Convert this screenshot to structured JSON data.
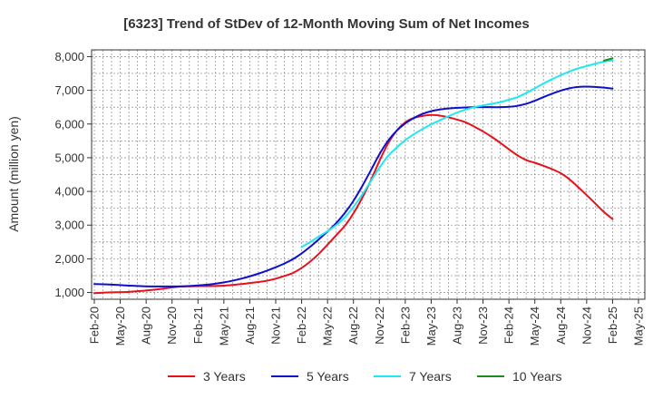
{
  "chart_data": {
    "type": "line",
    "title": "[6323]  Trend of StDev of 12-Month Moving Sum of Net Incomes",
    "xlabel": "",
    "ylabel": "Amount (million yen)",
    "x_tick_labels": [
      "Feb-20",
      "May-20",
      "Aug-20",
      "Nov-20",
      "Feb-21",
      "May-21",
      "Aug-21",
      "Nov-21",
      "Feb-22",
      "May-22",
      "Aug-22",
      "Nov-22",
      "Feb-23",
      "May-23",
      "Aug-23",
      "Nov-23",
      "Feb-24",
      "May-24",
      "Aug-24",
      "Nov-24",
      "Feb-25",
      "May-25"
    ],
    "y_ticks": [
      1000,
      2000,
      3000,
      4000,
      5000,
      6000,
      7000,
      8000
    ],
    "y_tick_labels": [
      "1,000",
      "2,000",
      "3,000",
      "4,000",
      "5,000",
      "6,000",
      "7,000",
      "8,000"
    ],
    "ylim": [
      800,
      8200
    ],
    "grid": true,
    "legend_position": "bottom",
    "series": [
      {
        "name": "3 Years",
        "color": "#e8101a",
        "x": [
          "Feb-20",
          "Mar-20",
          "Apr-20",
          "May-20",
          "Jun-20",
          "Jul-20",
          "Aug-20",
          "Sep-20",
          "Oct-20",
          "Nov-20",
          "Dec-20",
          "Jan-21",
          "Feb-21",
          "Mar-21",
          "Apr-21",
          "May-21",
          "Jun-21",
          "Jul-21",
          "Aug-21",
          "Sep-21",
          "Oct-21",
          "Nov-21",
          "Dec-21",
          "Jan-22",
          "Feb-22",
          "Mar-22",
          "Apr-22",
          "May-22",
          "Jun-22",
          "Jul-22",
          "Aug-22",
          "Sep-22",
          "Oct-22",
          "Nov-22",
          "Dec-22",
          "Jan-23",
          "Feb-23",
          "Mar-23",
          "Apr-23",
          "May-23",
          "Jun-23",
          "Jul-23",
          "Aug-23",
          "Sep-23",
          "Oct-23",
          "Nov-23",
          "Dec-23",
          "Jan-24",
          "Feb-24",
          "Mar-24",
          "Apr-24",
          "May-24",
          "Jun-24",
          "Jul-24",
          "Aug-24",
          "Sep-24",
          "Oct-24",
          "Nov-24",
          "Dec-24",
          "Jan-25",
          "Feb-25"
        ],
        "values": [
          980,
          995,
          1005,
          1010,
          1020,
          1040,
          1060,
          1085,
          1115,
          1150,
          1175,
          1185,
          1190,
          1190,
          1195,
          1205,
          1225,
          1250,
          1280,
          1310,
          1350,
          1410,
          1490,
          1580,
          1730,
          1920,
          2150,
          2420,
          2700,
          2980,
          3350,
          3800,
          4320,
          4900,
          5420,
          5800,
          6050,
          6180,
          6240,
          6270,
          6250,
          6200,
          6130,
          6050,
          5920,
          5780,
          5620,
          5440,
          5250,
          5070,
          4930,
          4850,
          4760,
          4660,
          4540,
          4360,
          4130,
          3890,
          3640,
          3390,
          3180
        ]
      },
      {
        "name": "5 Years",
        "color": "#1010cc",
        "x": [
          "Feb-20",
          "Mar-20",
          "Apr-20",
          "May-20",
          "Jun-20",
          "Jul-20",
          "Aug-20",
          "Sep-20",
          "Oct-20",
          "Nov-20",
          "Dec-20",
          "Jan-21",
          "Feb-21",
          "Mar-21",
          "Apr-21",
          "May-21",
          "Jun-21",
          "Jul-21",
          "Aug-21",
          "Sep-21",
          "Oct-21",
          "Nov-21",
          "Dec-21",
          "Jan-22",
          "Feb-22",
          "Mar-22",
          "Apr-22",
          "May-22",
          "Jun-22",
          "Jul-22",
          "Aug-22",
          "Sep-22",
          "Oct-22",
          "Nov-22",
          "Dec-22",
          "Jan-23",
          "Feb-23",
          "Mar-23",
          "Apr-23",
          "May-23",
          "Jun-23",
          "Jul-23",
          "Aug-23",
          "Sep-23",
          "Oct-23",
          "Nov-23",
          "Dec-23",
          "Jan-24",
          "Feb-24",
          "Mar-24",
          "Apr-24",
          "May-24",
          "Jun-24",
          "Jul-24",
          "Aug-24",
          "Sep-24",
          "Oct-24",
          "Nov-24",
          "Dec-24",
          "Jan-25",
          "Feb-25"
        ],
        "values": [
          1250,
          1245,
          1235,
          1220,
          1205,
          1195,
          1185,
          1180,
          1180,
          1180,
          1185,
          1195,
          1210,
          1230,
          1260,
          1300,
          1350,
          1410,
          1480,
          1560,
          1650,
          1750,
          1860,
          1990,
          2160,
          2360,
          2580,
          2810,
          3060,
          3360,
          3720,
          4150,
          4620,
          5100,
          5500,
          5800,
          6020,
          6180,
          6300,
          6380,
          6430,
          6460,
          6480,
          6490,
          6500,
          6500,
          6500,
          6500,
          6510,
          6540,
          6600,
          6690,
          6800,
          6900,
          6990,
          7060,
          7100,
          7110,
          7100,
          7080,
          7050
        ]
      },
      {
        "name": "7 Years",
        "color": "#1ee8f0",
        "x": [
          "Feb-22",
          "Mar-22",
          "Apr-22",
          "May-22",
          "Jun-22",
          "Jul-22",
          "Aug-22",
          "Sep-22",
          "Oct-22",
          "Nov-22",
          "Dec-22",
          "Jan-23",
          "Feb-23",
          "Mar-23",
          "Apr-23",
          "May-23",
          "Jun-23",
          "Jul-23",
          "Aug-23",
          "Sep-23",
          "Oct-23",
          "Nov-23",
          "Dec-23",
          "Jan-24",
          "Feb-24",
          "Mar-24",
          "Apr-24",
          "May-24",
          "Jun-24",
          "Jul-24",
          "Aug-24",
          "Sep-24",
          "Oct-24",
          "Nov-24",
          "Dec-24",
          "Jan-25",
          "Feb-25"
        ],
        "values": [
          2350,
          2500,
          2660,
          2820,
          3000,
          3230,
          3540,
          3900,
          4300,
          4700,
          5050,
          5300,
          5520,
          5700,
          5850,
          5990,
          6110,
          6230,
          6340,
          6430,
          6500,
          6550,
          6600,
          6650,
          6720,
          6800,
          6920,
          7060,
          7200,
          7330,
          7450,
          7560,
          7650,
          7720,
          7790,
          7850,
          7890
        ]
      },
      {
        "name": "10 Years",
        "color": "#1e8a1e",
        "x": [
          "Jan-25",
          "Feb-25"
        ],
        "values": [
          7880,
          7950
        ]
      }
    ]
  }
}
